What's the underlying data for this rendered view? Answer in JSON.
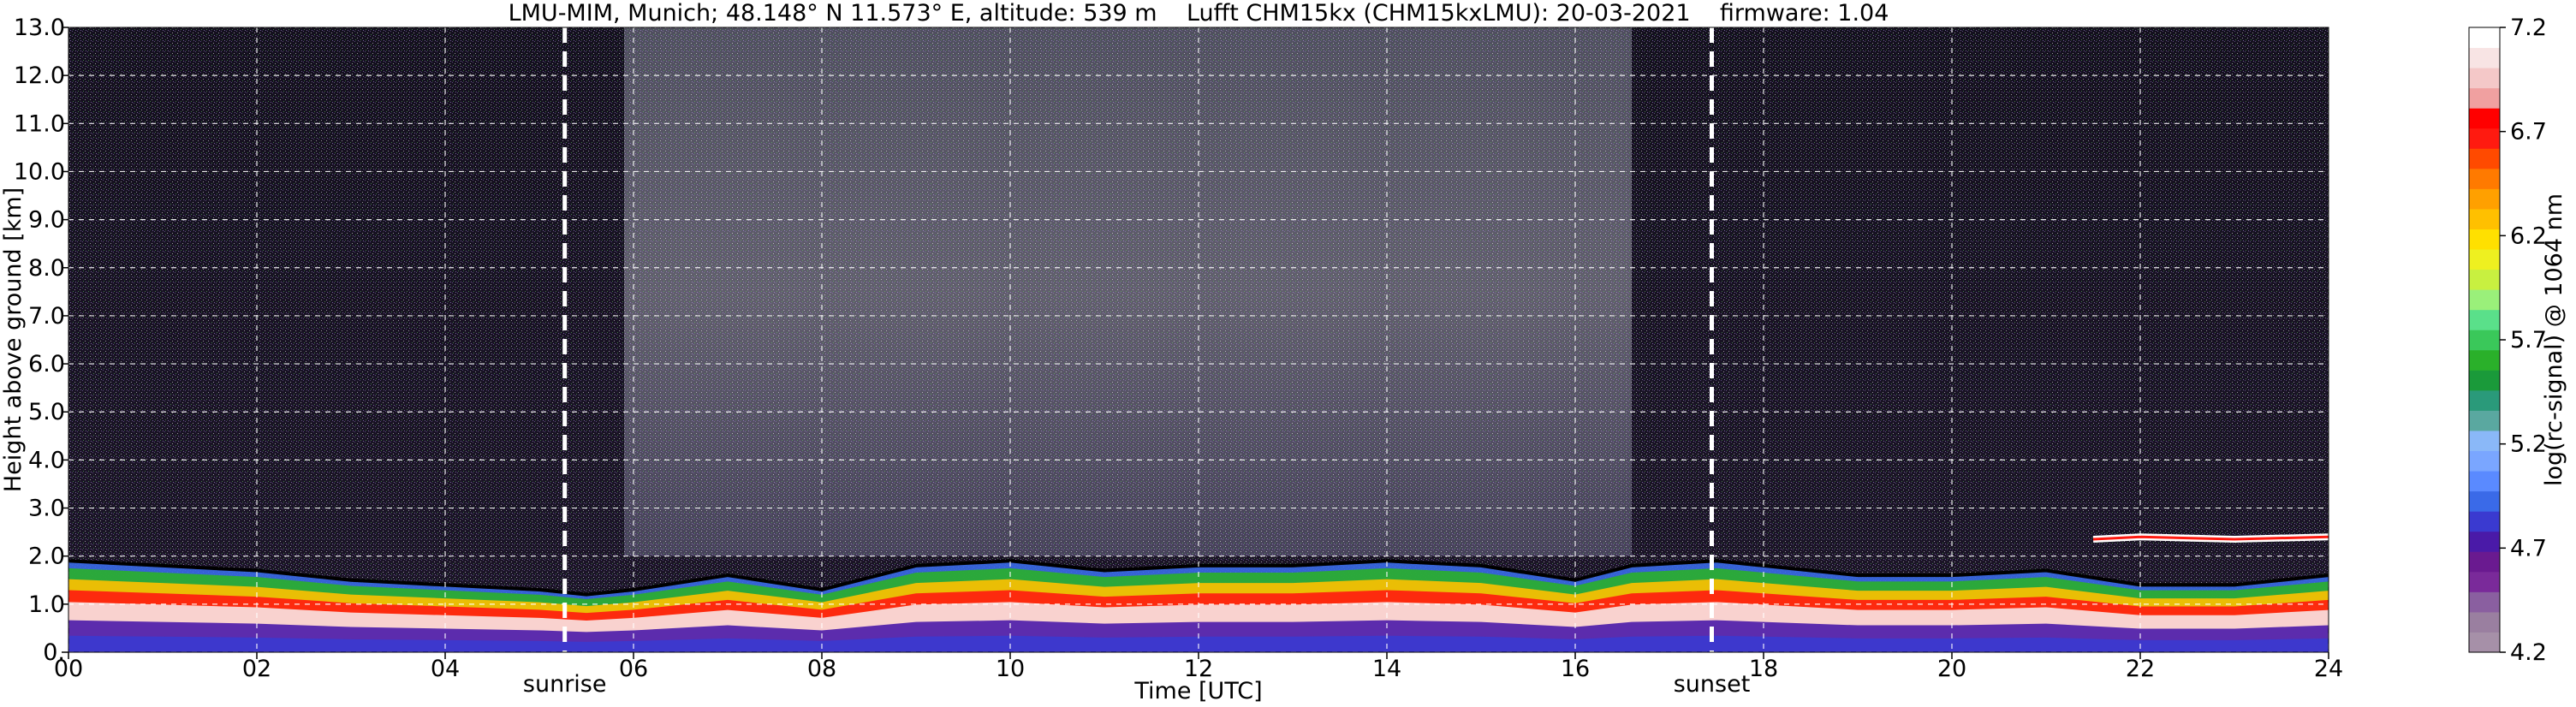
{
  "chart_data": {
    "type": "heatmap",
    "title": "LMU-MIM, Munich; 48.148° N 11.573° E, altitude: 539 m    Lufft CHM15kx (CHM15kxLMU): 20-03-2021    firmware: 1.04",
    "xlabel": "Time [UTC]",
    "ylabel": "Height above ground [km]",
    "xlim": [
      0,
      24
    ],
    "ylim": [
      0,
      13
    ],
    "x_ticks": [
      "00",
      "02",
      "04",
      "06",
      "08",
      "10",
      "12",
      "14",
      "16",
      "18",
      "20",
      "22",
      "24"
    ],
    "x_tick_values": [
      0,
      2,
      4,
      6,
      8,
      10,
      12,
      14,
      16,
      18,
      20,
      22,
      24
    ],
    "y_ticks": [
      "0.",
      "1.0",
      "2.0",
      "3.0",
      "4.0",
      "5.0",
      "6.0",
      "7.0",
      "8.0",
      "9.0",
      "10.0",
      "11.0",
      "12.0",
      "13.0"
    ],
    "y_tick_values": [
      0,
      1,
      2,
      3,
      4,
      5,
      6,
      7,
      8,
      9,
      10,
      11,
      12,
      13
    ],
    "grid": true,
    "markers": [
      {
        "label": "sunrise",
        "x": 5.27
      },
      {
        "label": "sunset",
        "x": 17.45
      }
    ],
    "colorbar": {
      "label": "log(rc-signal) @ 1064 nm",
      "min": 4.2,
      "max": 7.2,
      "tick_labels": [
        "4.2",
        "4.7",
        "5.2",
        "5.7",
        "6.2",
        "6.7",
        "7.2"
      ],
      "tick_values": [
        4.2,
        4.7,
        5.2,
        5.7,
        6.2,
        6.7,
        7.2
      ],
      "colors": [
        "#a690a8",
        "#9a7fa0",
        "#8a5fa0",
        "#7a2a9a",
        "#6a1a90",
        "#4a1aa8",
        "#3a3ad0",
        "#3a6ae8",
        "#5a8aff",
        "#7aa6ff",
        "#8ab8f8",
        "#5aa8a0",
        "#2a9a7a",
        "#1a9a3a",
        "#2ab02a",
        "#3ac85a",
        "#5ae08a",
        "#9af07a",
        "#c8f040",
        "#eef020",
        "#ffe000",
        "#ffc000",
        "#ffa000",
        "#ff7a00",
        "#ff4a00",
        "#ff1a10",
        "#ff0000",
        "#f0a0a0",
        "#f4c8c8",
        "#f8e4e4",
        "#ffffff"
      ]
    },
    "layers": [
      {
        "name": "boundary_layer_height_km",
        "x": [
          0,
          1,
          2,
          3,
          4,
          5,
          5.5,
          6,
          7,
          8,
          9,
          10,
          11,
          12,
          13,
          14,
          15,
          16,
          16.6,
          17.5,
          18,
          19,
          20,
          21,
          22,
          23,
          24
        ],
        "y": [
          1.9,
          1.8,
          1.7,
          1.5,
          1.4,
          1.3,
          1.2,
          1.3,
          1.6,
          1.3,
          1.8,
          1.9,
          1.7,
          1.8,
          1.8,
          1.9,
          1.8,
          1.5,
          1.8,
          1.9,
          1.8,
          1.6,
          1.6,
          1.7,
          1.4,
          1.4,
          1.6
        ]
      },
      {
        "name": "upper_aerosol_layer_km",
        "x": [
          21.5,
          22,
          23,
          24
        ],
        "y": [
          2.35,
          2.4,
          2.35,
          2.4
        ]
      }
    ]
  }
}
